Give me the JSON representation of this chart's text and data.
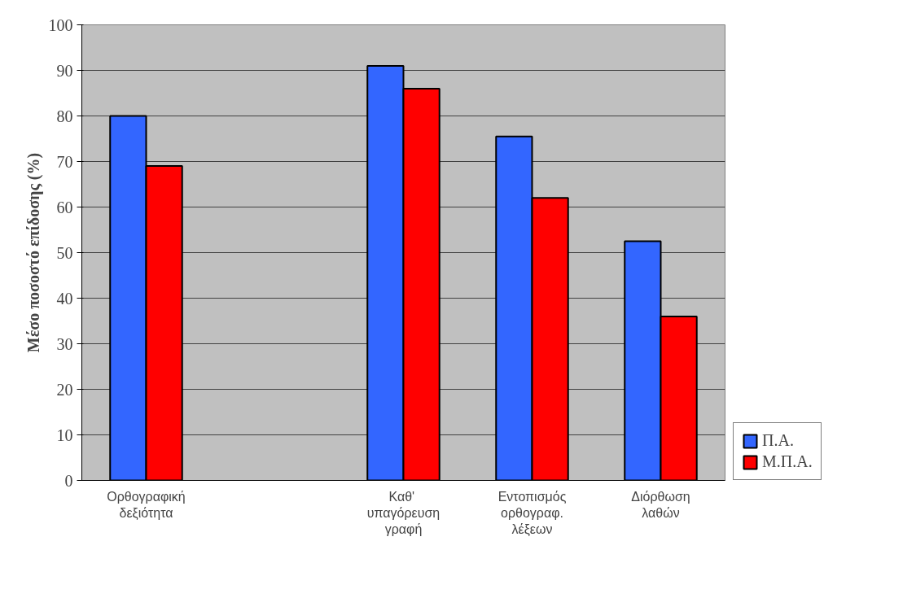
{
  "chart_data": {
    "type": "bar",
    "ylabel": "Μέσο ποσοστό επίδοσης (%)",
    "categories": [
      "Ορθογραφική\nδεξιότητα",
      null,
      "Καθ' \nυπαγόρευση\nγραφή",
      "Εντοπισμός\nορθογραφ.\nλέξεων",
      "Διόρθωση\nλαθών"
    ],
    "series": [
      {
        "name": "Π.Α.",
        "color": "#3366ff",
        "values": [
          80,
          null,
          91,
          75.5,
          52.5
        ]
      },
      {
        "name": "Μ.Π.Α.",
        "color": "#ff0000",
        "values": [
          69,
          null,
          86,
          62,
          36
        ]
      }
    ],
    "ylim": [
      0,
      100
    ],
    "yticks": [
      0,
      10,
      20,
      30,
      40,
      50,
      60,
      70,
      80,
      90,
      100
    ],
    "grid": "y",
    "legend": "bottom right"
  }
}
